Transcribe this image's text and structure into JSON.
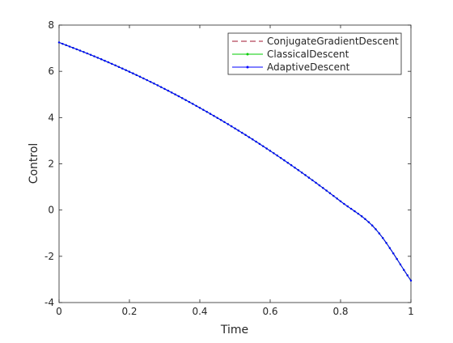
{
  "chart_data": {
    "type": "line",
    "title": "",
    "xlabel": "Time",
    "ylabel": "Control",
    "xlim": [
      0,
      1
    ],
    "ylim": [
      -4,
      8
    ],
    "xticks": [
      0,
      0.2,
      0.4,
      0.6,
      0.8,
      1
    ],
    "xtick_labels": [
      "0",
      "0.2",
      "0.4",
      "0.6",
      "0.8",
      "1"
    ],
    "yticks": [
      -4,
      -2,
      0,
      2,
      4,
      6,
      8
    ],
    "ytick_labels": [
      "-4",
      "-2",
      "0",
      "2",
      "4",
      "6",
      "8"
    ],
    "grid": false,
    "legend_position": "top-right",
    "x": [
      0,
      0.1,
      0.2,
      0.3,
      0.4,
      0.5,
      0.6,
      0.7,
      0.8,
      0.9,
      1.0
    ],
    "series": [
      {
        "name": "ConjugateGradientDescent",
        "color": "#a2142f",
        "line_style": "dashed",
        "marker": "none",
        "values": [
          7.25,
          6.65,
          5.98,
          5.24,
          4.42,
          3.53,
          2.56,
          1.51,
          0.38,
          -0.83,
          -3.05
        ]
      },
      {
        "name": "ClassicalDescent",
        "color": "#00cc00",
        "line_style": "solid",
        "marker": "point",
        "values": [
          7.25,
          6.65,
          5.98,
          5.24,
          4.42,
          3.53,
          2.56,
          1.51,
          0.38,
          -0.83,
          -3.05
        ]
      },
      {
        "name": "AdaptiveDescent",
        "color": "#0000ff",
        "line_style": "solid",
        "marker": "point",
        "values": [
          7.25,
          6.65,
          5.98,
          5.24,
          4.42,
          3.53,
          2.56,
          1.51,
          0.38,
          -0.83,
          -3.05
        ]
      }
    ]
  }
}
